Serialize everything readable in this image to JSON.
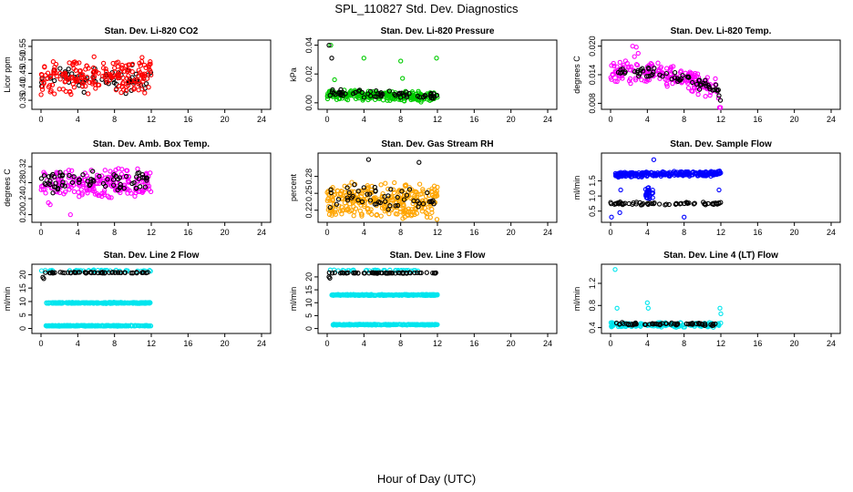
{
  "figure": {
    "title": "SPL_110827  Std. Dev. Diagnostics",
    "xlabel": "Hour of Day (UTC)"
  },
  "colors": {
    "black": "#000000",
    "red": "#ff0000",
    "green": "#00cc00",
    "magenta": "#ff00ff",
    "orange": "#ffa500",
    "blue": "#0000ff",
    "cyan": "#00e5ee"
  },
  "chart_data": [
    {
      "type": "scatter",
      "title": "Stan. Dev. Li-820 CO2",
      "ylabel": "Licor ppm",
      "xlim": [
        0,
        24
      ],
      "xticks": [
        "0",
        "4",
        "8",
        "12",
        "16",
        "20",
        "24"
      ],
      "ylim": [
        0.33,
        0.56
      ],
      "yticks": [
        "0.35",
        "0.40",
        "0.45",
        "0.50",
        "0.55"
      ],
      "series": [
        {
          "name": "black",
          "color": "black",
          "pattern": "band",
          "x": [
            0,
            12
          ],
          "center": [
            0.43,
            0.43
          ],
          "spread": 0.065,
          "count": 70
        },
        {
          "name": "red",
          "color": "red",
          "pattern": "band",
          "x": [
            0,
            12
          ],
          "center": [
            0.44,
            0.44
          ],
          "spread": 0.075,
          "count": 200
        }
      ]
    },
    {
      "type": "scatter",
      "title": "Stan. Dev. Li-820 Pressure",
      "ylabel": "kPa",
      "xlim": [
        0,
        24
      ],
      "xticks": [
        "0",
        "4",
        "8",
        "12",
        "16",
        "20",
        "24"
      ],
      "ylim": [
        -0.002,
        0.041
      ],
      "yticks": [
        "0.00",
        "0.02",
        "0.04"
      ],
      "series": [
        {
          "name": "green",
          "color": "green",
          "pattern": "band",
          "x": [
            0,
            12
          ],
          "center": [
            0.006,
            0.004
          ],
          "spread": 0.004,
          "count": 260
        },
        {
          "name": "black",
          "color": "black",
          "pattern": "band",
          "x": [
            0,
            12
          ],
          "center": [
            0.007,
            0.005
          ],
          "spread": 0.003,
          "count": 60
        },
        {
          "name": "green-outliers",
          "color": "green",
          "pattern": "points",
          "x": [
            0.4,
            0.8,
            4.0,
            8.0,
            8.2,
            11.9
          ],
          "y": [
            0.04,
            0.016,
            0.031,
            0.029,
            0.017,
            0.031
          ]
        },
        {
          "name": "black-outliers",
          "color": "black",
          "pattern": "points",
          "x": [
            0.2,
            0.5
          ],
          "y": [
            0.04,
            0.031
          ]
        }
      ]
    },
    {
      "type": "scatter",
      "title": "Stan. Dev. Li-820 Temp.",
      "ylabel": "degrees C",
      "xlim": [
        0,
        24
      ],
      "xticks": [
        "0",
        "4",
        "8",
        "12",
        "16",
        "20",
        "24"
      ],
      "ylim": [
        0.0075,
        0.0205
      ],
      "yticks": [
        "0.008",
        "0.014",
        "0.020"
      ],
      "series": [
        {
          "name": "magenta",
          "color": "magenta",
          "pattern": "band",
          "x": [
            0,
            5,
            9,
            11.5,
            12
          ],
          "center": [
            0.0145,
            0.0145,
            0.0125,
            0.011,
            0.008
          ],
          "spread": 0.0025,
          "count": 200
        },
        {
          "name": "black",
          "color": "black",
          "pattern": "band",
          "x": [
            0,
            5,
            9,
            11.5,
            12
          ],
          "center": [
            0.0145,
            0.0145,
            0.0125,
            0.011,
            0.009
          ],
          "spread": 0.0015,
          "count": 60
        },
        {
          "name": "magenta-peaks",
          "color": "magenta",
          "pattern": "points",
          "x": [
            2.4,
            2.8,
            3.0,
            2.6
          ],
          "y": [
            0.02,
            0.0198,
            0.0185,
            0.0178
          ]
        }
      ]
    },
    {
      "type": "scatter",
      "title": "Stan. Dev. Amb. Box Temp.",
      "ylabel": "degrees C",
      "xlim": [
        0,
        24
      ],
      "xticks": [
        "0",
        "4",
        "8",
        "12",
        "16",
        "20",
        "24"
      ],
      "ylim": [
        0.19,
        0.345
      ],
      "yticks": [
        "0.20",
        "0.24",
        "0.28",
        "0.32"
      ],
      "series": [
        {
          "name": "magenta",
          "color": "magenta",
          "pattern": "band",
          "x": [
            0,
            12
          ],
          "center": [
            0.275,
            0.28
          ],
          "spread": 0.04,
          "count": 220
        },
        {
          "name": "black",
          "color": "black",
          "pattern": "band",
          "x": [
            0,
            12
          ],
          "center": [
            0.28,
            0.285
          ],
          "spread": 0.03,
          "count": 70
        },
        {
          "name": "magenta-low",
          "color": "magenta",
          "pattern": "points",
          "x": [
            0.8,
            1.0,
            3.2
          ],
          "y": [
            0.23,
            0.225,
            0.2
          ]
        }
      ]
    },
    {
      "type": "scatter",
      "title": "Stan. Dev. Gas Stream RH",
      "ylabel": "percent",
      "xlim": [
        0,
        24
      ],
      "xticks": [
        "0",
        "4",
        "8",
        "12",
        "16",
        "20",
        "24"
      ],
      "ylim": [
        0.205,
        0.315
      ],
      "yticks": [
        "0.22",
        "0.25",
        "0.28"
      ],
      "series": [
        {
          "name": "orange",
          "color": "orange",
          "pattern": "band",
          "x": [
            0,
            12
          ],
          "center": [
            0.24,
            0.235
          ],
          "spread": 0.035,
          "count": 320
        },
        {
          "name": "black",
          "color": "black",
          "pattern": "band",
          "x": [
            0,
            12
          ],
          "center": [
            0.245,
            0.24
          ],
          "spread": 0.025,
          "count": 50
        },
        {
          "name": "black-high",
          "color": "black",
          "pattern": "points",
          "x": [
            4.5,
            10.0
          ],
          "y": [
            0.31,
            0.305
          ]
        }
      ]
    },
    {
      "type": "scatter",
      "title": "Stan. Dev. Sample Flow",
      "ylabel": "ml/min",
      "xlim": [
        0,
        24
      ],
      "xticks": [
        "0",
        "4",
        "8",
        "12",
        "16",
        "20",
        "24"
      ],
      "ylim": [
        0.25,
        2.3
      ],
      "yticks": [
        "0.5",
        "1.0",
        "1.5"
      ],
      "series": [
        {
          "name": "blue",
          "color": "blue",
          "pattern": "band",
          "x": [
            0.5,
            12
          ],
          "center": [
            1.7,
            1.75
          ],
          "spread": 0.1,
          "count": 260
        },
        {
          "name": "black",
          "color": "black",
          "pattern": "band",
          "x": [
            0,
            12
          ],
          "center": [
            0.75,
            0.75
          ],
          "spread": 0.06,
          "count": 60
        },
        {
          "name": "blue-drop",
          "color": "blue",
          "pattern": "band",
          "x": [
            3.8,
            4.6
          ],
          "center": [
            1.1,
            1.1
          ],
          "spread": 0.25,
          "count": 25
        },
        {
          "name": "blue-outliers",
          "color": "blue",
          "pattern": "points",
          "x": [
            0.1,
            1.0,
            1.1,
            4.7,
            8.0,
            4.6,
            11.8
          ],
          "y": [
            0.3,
            0.45,
            1.2,
            2.2,
            0.3,
            1.1,
            1.2
          ]
        }
      ]
    },
    {
      "type": "scatter",
      "title": "Stan. Dev. Line 2 Flow",
      "ylabel": "ml/min",
      "xlim": [
        0,
        24
      ],
      "xticks": [
        "0",
        "4",
        "8",
        "12",
        "16",
        "20",
        "24"
      ],
      "ylim": [
        -0.5,
        22.5
      ],
      "yticks": [
        "0",
        "5",
        "10",
        "15",
        "20"
      ],
      "series": [
        {
          "name": "cyan-high",
          "color": "cyan",
          "pattern": "band",
          "x": [
            0,
            12
          ],
          "center": [
            21.5,
            21.5
          ],
          "spread": 0.3,
          "count": 40
        },
        {
          "name": "black",
          "color": "black",
          "pattern": "band",
          "x": [
            0.2,
            12
          ],
          "center": [
            20.7,
            20.7
          ],
          "spread": 0.2,
          "count": 60
        },
        {
          "name": "cyan-mid",
          "color": "cyan",
          "pattern": "band",
          "x": [
            0.5,
            12
          ],
          "center": [
            9.5,
            9.5
          ],
          "spread": 0.25,
          "count": 240
        },
        {
          "name": "cyan-low",
          "color": "cyan",
          "pattern": "band",
          "x": [
            0.5,
            12
          ],
          "center": [
            1.0,
            1.0
          ],
          "spread": 0.2,
          "count": 240
        },
        {
          "name": "black-low",
          "color": "black",
          "pattern": "points",
          "x": [
            0.2,
            0.3
          ],
          "y": [
            19.0,
            18.5
          ]
        }
      ]
    },
    {
      "type": "scatter",
      "title": "Stan. Dev. Line 3 Flow",
      "ylabel": "ml/min",
      "xlim": [
        0,
        24
      ],
      "xticks": [
        "0",
        "4",
        "8",
        "12",
        "16",
        "20",
        "24"
      ],
      "ylim": [
        -0.5,
        23.5
      ],
      "yticks": [
        "0",
        "5",
        "10",
        "15",
        "20"
      ],
      "series": [
        {
          "name": "cyan-high",
          "color": "cyan",
          "pattern": "band",
          "x": [
            0,
            12
          ],
          "center": [
            22.5,
            22.5
          ],
          "spread": 0.3,
          "count": 40
        },
        {
          "name": "black",
          "color": "black",
          "pattern": "band",
          "x": [
            0.2,
            12
          ],
          "center": [
            21.5,
            21.5
          ],
          "spread": 0.2,
          "count": 60
        },
        {
          "name": "cyan-mid",
          "color": "cyan",
          "pattern": "band",
          "x": [
            0.5,
            12
          ],
          "center": [
            13.0,
            13.0
          ],
          "spread": 0.25,
          "count": 240
        },
        {
          "name": "cyan-low",
          "color": "cyan",
          "pattern": "band",
          "x": [
            0.5,
            12
          ],
          "center": [
            1.5,
            1.5
          ],
          "spread": 0.2,
          "count": 240
        },
        {
          "name": "black-low",
          "color": "black",
          "pattern": "points",
          "x": [
            0.2,
            0.3
          ],
          "y": [
            20.0,
            19.5
          ]
        }
      ]
    },
    {
      "type": "scatter",
      "title": "Stan. Dev. Line 4 (LT) Flow",
      "ylabel": "ml/min",
      "xlim": [
        0,
        24
      ],
      "xticks": [
        "0",
        "4",
        "8",
        "12",
        "16",
        "20",
        "24"
      ],
      "ylim": [
        0.36,
        1.48
      ],
      "yticks": [
        "0.4",
        "0.8",
        "1.2"
      ],
      "series": [
        {
          "name": "cyan",
          "color": "cyan",
          "pattern": "band",
          "x": [
            0,
            12
          ],
          "center": [
            0.45,
            0.45
          ],
          "spread": 0.05,
          "count": 180
        },
        {
          "name": "black",
          "color": "black",
          "pattern": "band",
          "x": [
            0,
            12
          ],
          "center": [
            0.47,
            0.46
          ],
          "spread": 0.03,
          "count": 60
        },
        {
          "name": "cyan-outliers",
          "color": "cyan",
          "pattern": "points",
          "x": [
            0.5,
            0.7,
            4.0,
            4.1,
            11.9,
            12.0
          ],
          "y": [
            1.45,
            0.75,
            0.85,
            0.75,
            0.75,
            0.65
          ]
        }
      ]
    }
  ]
}
